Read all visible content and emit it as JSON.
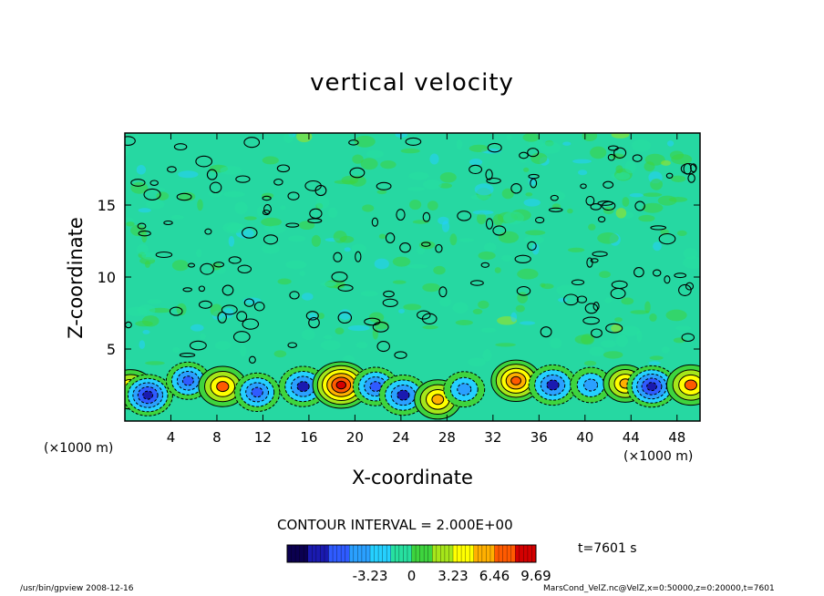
{
  "chart_data": {
    "type": "heatmap",
    "title": "vertical velocity",
    "xlabel": "X-coordinate",
    "ylabel": "Z-coordinate",
    "x_unit_label": "(×1000 m)",
    "xlim": [
      0,
      50
    ],
    "ylim": [
      0,
      20
    ],
    "x_ticks": [
      4,
      8,
      12,
      16,
      20,
      24,
      28,
      32,
      36,
      40,
      44,
      48
    ],
    "y_ticks": [
      5,
      10,
      15
    ],
    "contour_interval_text": "CONTOUR INTERVAL = 2.000E+00",
    "contour_interval": 2.0,
    "colorbar": {
      "range": [
        -9.69,
        9.69
      ],
      "ticks": [
        -3.23,
        0,
        3.23,
        6.46,
        9.69
      ],
      "tick_labels": [
        "-3.23",
        "0",
        "3.23",
        "6.46",
        "9.69"
      ],
      "colors": [
        "#0b0050",
        "#1a1ab0",
        "#2f5bff",
        "#2aa0ff",
        "#25d0ff",
        "#27e0a0",
        "#3ed43e",
        "#a6e61a",
        "#ffff00",
        "#ffb000",
        "#ff5a00",
        "#d40000"
      ]
    },
    "cells": [
      {
        "x": 0.5,
        "z": 2.2,
        "value": 6.0
      },
      {
        "x": 2.0,
        "z": 1.8,
        "value": -7.0
      },
      {
        "x": 5.5,
        "z": 2.8,
        "value": -5.0
      },
      {
        "x": 8.5,
        "z": 2.4,
        "value": 6.5
      },
      {
        "x": 11.5,
        "z": 2.0,
        "value": -5.5
      },
      {
        "x": 15.5,
        "z": 2.4,
        "value": -6.5
      },
      {
        "x": 18.8,
        "z": 2.5,
        "value": 9.5
      },
      {
        "x": 21.8,
        "z": 2.4,
        "value": -5.5
      },
      {
        "x": 24.2,
        "z": 1.8,
        "value": -6.5
      },
      {
        "x": 27.2,
        "z": 1.5,
        "value": 6.0
      },
      {
        "x": 29.5,
        "z": 2.2,
        "value": -4.0
      },
      {
        "x": 34.0,
        "z": 2.8,
        "value": 7.0
      },
      {
        "x": 37.2,
        "z": 2.5,
        "value": -6.5
      },
      {
        "x": 40.5,
        "z": 2.5,
        "value": -4.0
      },
      {
        "x": 43.5,
        "z": 2.6,
        "value": 5.0
      },
      {
        "x": 45.8,
        "z": 2.4,
        "value": -7.0
      },
      {
        "x": 49.2,
        "z": 2.5,
        "value": 6.5
      }
    ],
    "time_label": "t=7601 s"
  },
  "footer": {
    "left": "/usr/bin/gpview   2008-12-16",
    "right": "MarsCond_VelZ.nc@VelZ,x=0:50000,z=0:20000,t=7601"
  }
}
